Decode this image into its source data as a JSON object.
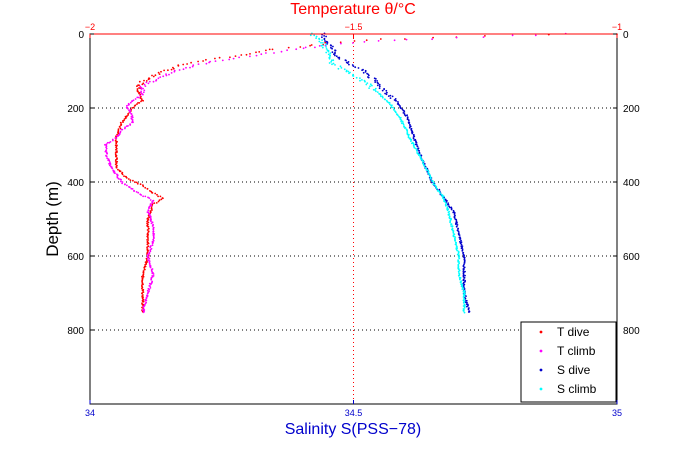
{
  "chart_data": {
    "type": "scatter",
    "title": "Temperature θ/°C",
    "xlabel": "Salinity S(PSS−78)",
    "ylabel": "Depth (m)",
    "x_bottom": {
      "min": 34,
      "max": 35,
      "ticks": [
        34,
        34.5,
        35
      ],
      "tick_labels": [
        "34",
        "34.5",
        "35"
      ],
      "color": "#0000cc"
    },
    "x_top": {
      "min": -2,
      "max": -1,
      "ticks": [
        -2,
        -1.5,
        -1
      ],
      "tick_labels": [
        "−2",
        "−1.5",
        "−1"
      ],
      "color": "#ff0000"
    },
    "y": {
      "min": 0,
      "max": 1000,
      "reversed": true,
      "ticks": [
        0,
        200,
        400,
        600,
        800
      ],
      "tick_labels": [
        "0",
        "200",
        "400",
        "600",
        "800"
      ]
    },
    "grid": "dotted",
    "legend_position": "bottom-right",
    "series": [
      {
        "name": "T dive",
        "axis": "top",
        "color": "#ff0000",
        "points": [
          [
            -1.0,
            0
          ],
          [
            -1.25,
            5
          ],
          [
            -1.35,
            10
          ],
          [
            -1.45,
            15
          ],
          [
            -1.55,
            25
          ],
          [
            -1.6,
            35
          ],
          [
            -1.65,
            40
          ],
          [
            -1.7,
            55
          ],
          [
            -1.75,
            65
          ],
          [
            -1.8,
            75
          ],
          [
            -1.83,
            85
          ],
          [
            -1.86,
            100
          ],
          [
            -1.88,
            115
          ],
          [
            -1.9,
            130
          ],
          [
            -1.91,
            150
          ],
          [
            -1.9,
            180
          ],
          [
            -1.92,
            200
          ],
          [
            -1.94,
            240
          ],
          [
            -1.95,
            280
          ],
          [
            -1.95,
            320
          ],
          [
            -1.95,
            360
          ],
          [
            -1.93,
            390
          ],
          [
            -1.9,
            410
          ],
          [
            -1.88,
            430
          ],
          [
            -1.86,
            445
          ],
          [
            -1.88,
            460
          ],
          [
            -1.89,
            500
          ],
          [
            -1.89,
            550
          ],
          [
            -1.89,
            600
          ],
          [
            -1.9,
            650
          ],
          [
            -1.9,
            700
          ],
          [
            -1.9,
            755
          ]
        ]
      },
      {
        "name": "T climb",
        "axis": "top",
        "color": "#ff00ff",
        "points": [
          [
            -1.1,
            0
          ],
          [
            -1.25,
            8
          ],
          [
            -1.4,
            15
          ],
          [
            -1.55,
            30
          ],
          [
            -1.65,
            50
          ],
          [
            -1.7,
            60
          ],
          [
            -1.75,
            70
          ],
          [
            -1.8,
            85
          ],
          [
            -1.84,
            100
          ],
          [
            -1.87,
            120
          ],
          [
            -1.9,
            140
          ],
          [
            -1.9,
            165
          ],
          [
            -1.92,
            180
          ],
          [
            -1.93,
            195
          ],
          [
            -1.92,
            220
          ],
          [
            -1.92,
            240
          ],
          [
            -1.94,
            260
          ],
          [
            -1.95,
            280
          ],
          [
            -1.97,
            300
          ],
          [
            -1.97,
            320
          ],
          [
            -1.96,
            360
          ],
          [
            -1.94,
            400
          ],
          [
            -1.91,
            430
          ],
          [
            -1.88,
            450
          ],
          [
            -1.89,
            480
          ],
          [
            -1.88,
            520
          ],
          [
            -1.88,
            560
          ],
          [
            -1.89,
            600
          ],
          [
            -1.88,
            650
          ],
          [
            -1.89,
            700
          ],
          [
            -1.9,
            755
          ]
        ]
      },
      {
        "name": "S dive",
        "axis": "bottom",
        "color": "#0000cc",
        "points": [
          [
            34.44,
            0
          ],
          [
            34.45,
            20
          ],
          [
            34.46,
            40
          ],
          [
            34.47,
            60
          ],
          [
            34.49,
            80
          ],
          [
            34.52,
            100
          ],
          [
            34.55,
            140
          ],
          [
            34.58,
            180
          ],
          [
            34.6,
            220
          ],
          [
            34.61,
            260
          ],
          [
            34.62,
            300
          ],
          [
            34.63,
            340
          ],
          [
            34.65,
            400
          ],
          [
            34.67,
            440
          ],
          [
            34.69,
            480
          ],
          [
            34.7,
            540
          ],
          [
            34.71,
            600
          ],
          [
            34.71,
            650
          ],
          [
            34.71,
            700
          ],
          [
            34.72,
            755
          ]
        ]
      },
      {
        "name": "S climb",
        "axis": "bottom",
        "color": "#00ffff",
        "points": [
          [
            34.42,
            0
          ],
          [
            34.44,
            20
          ],
          [
            34.45,
            50
          ],
          [
            34.46,
            80
          ],
          [
            34.5,
            110
          ],
          [
            34.54,
            150
          ],
          [
            34.57,
            190
          ],
          [
            34.59,
            230
          ],
          [
            34.6,
            260
          ],
          [
            34.61,
            290
          ],
          [
            34.63,
            340
          ],
          [
            34.65,
            400
          ],
          [
            34.67,
            440
          ],
          [
            34.68,
            480
          ],
          [
            34.69,
            540
          ],
          [
            34.7,
            600
          ],
          [
            34.7,
            650
          ],
          [
            34.71,
            700
          ],
          [
            34.71,
            755
          ]
        ]
      }
    ]
  }
}
